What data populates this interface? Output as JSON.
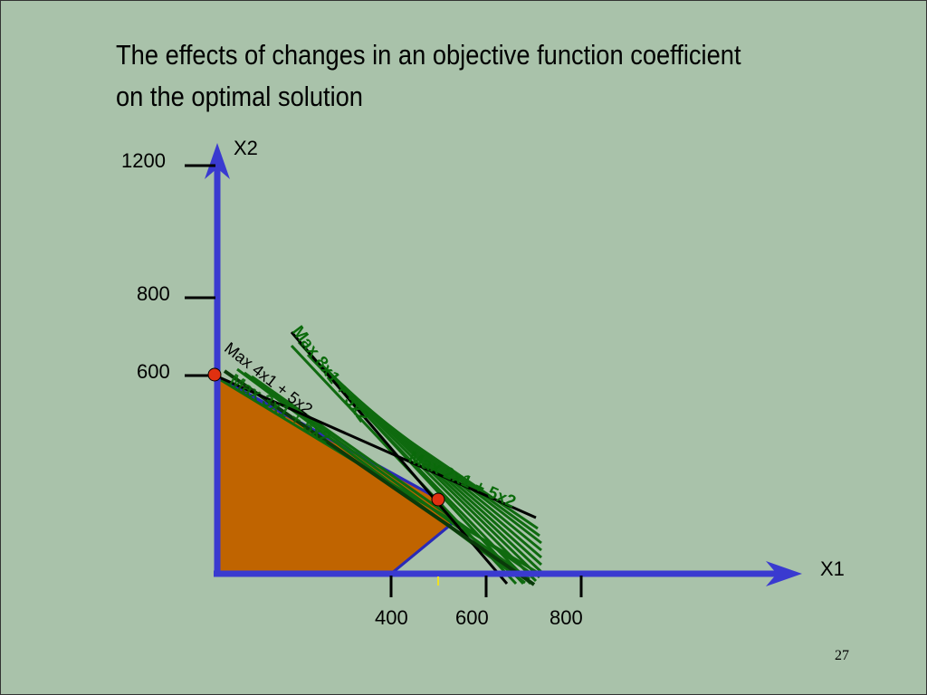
{
  "title": {
    "line1": "The effects of changes in an objective function coefficient",
    "line2": "on the optimal solution"
  },
  "axes": {
    "x_name": "X1",
    "y_name": "X2",
    "x_ticks": [
      "400",
      "600",
      "800"
    ],
    "y_ticks": [
      "1200",
      "800",
      "600"
    ]
  },
  "objective_labels": {
    "max_8x1_5x2": "Max 8x1 + 5x2",
    "max_4x1_5x2": "Max 4x1 + 5x2",
    "max_3x1_5x2": "Max 3x1 + 5x2",
    "max_2x1_5x2": "Max 2x1 + 5x2"
  },
  "colors": {
    "background": "#a9c2aa",
    "axis": "#3a3ad0",
    "feasible_region": "#c06400",
    "boundary": "#2a2ab8",
    "objective_lines": "#0f6a0f",
    "optimal_point": "#e03010"
  },
  "page_number": "27"
}
